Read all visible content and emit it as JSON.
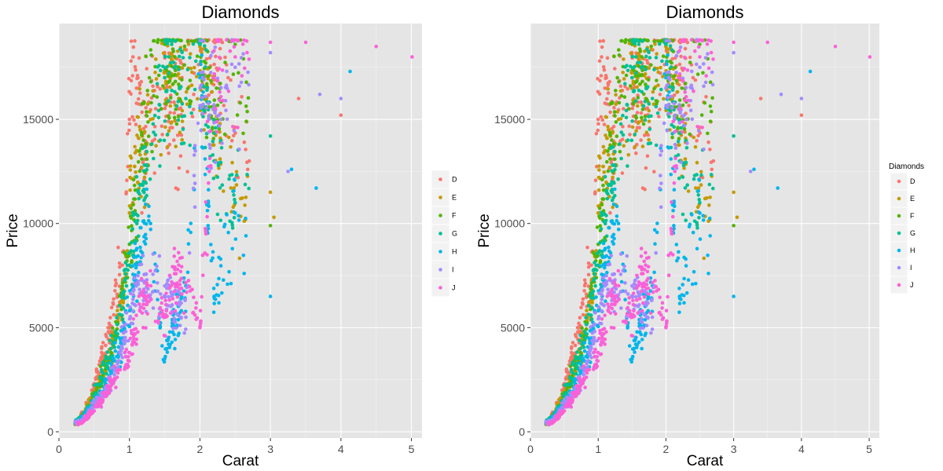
{
  "chart_data": [
    {
      "type": "scatter",
      "title": "Diamonds",
      "xlabel": "Carat",
      "ylabel": "Price",
      "xlim": [
        0,
        5.15
      ],
      "ylim": [
        -300,
        19600
      ],
      "x_ticks": [
        "0",
        "1",
        "2",
        "3",
        "4",
        "5"
      ],
      "y_ticks": [
        "0",
        "5000",
        "10000",
        "15000"
      ],
      "grid": true,
      "background": "#e5e5e5",
      "legend": {
        "title": "",
        "placement": "right",
        "entries": [
          "D",
          "E",
          "F",
          "G",
          "H",
          "I",
          "J"
        ]
      },
      "series": [
        {
          "name": "D",
          "color": "#F8766D",
          "x": [
            0.23,
            0.3,
            0.4,
            0.5,
            0.6,
            0.7,
            0.9,
            1.0,
            1.05,
            1.1,
            1.2,
            1.5,
            1.7,
            2.0,
            2.4,
            2.7,
            3.4,
            4.0
          ],
          "y": [
            400,
            700,
            1200,
            2200,
            3500,
            4800,
            8000,
            15000,
            18000,
            16500,
            14000,
            17000,
            15500,
            18500,
            17000,
            13000,
            16000,
            15200
          ]
        },
        {
          "name": "E",
          "color": "#C49A00",
          "x": [
            0.23,
            0.35,
            0.5,
            0.7,
            0.9,
            1.0,
            1.1,
            1.3,
            1.5,
            1.7,
            2.0,
            2.3,
            2.5,
            3.0,
            3.05
          ],
          "y": [
            350,
            800,
            1800,
            3500,
            6000,
            10500,
            13500,
            15000,
            17000,
            16000,
            18500,
            14000,
            10500,
            11500,
            10300
          ]
        },
        {
          "name": "F",
          "color": "#53B400",
          "x": [
            0.25,
            0.4,
            0.6,
            0.8,
            1.0,
            1.2,
            1.4,
            1.5,
            1.7,
            2.0,
            2.2,
            2.5,
            3.0
          ],
          "y": [
            450,
            1000,
            2500,
            4500,
            9000,
            14000,
            18700,
            18600,
            17500,
            18600,
            15000,
            18600,
            9900
          ]
        },
        {
          "name": "G",
          "color": "#00C094",
          "x": [
            0.25,
            0.45,
            0.6,
            0.8,
            1.0,
            1.2,
            1.5,
            1.6,
            1.8,
            2.0,
            2.2,
            2.5,
            3.0
          ],
          "y": [
            450,
            1200,
            2600,
            4500,
            8000,
            12000,
            17000,
            18600,
            16000,
            18600,
            13000,
            11000,
            14200
          ]
        },
        {
          "name": "H",
          "color": "#00B6EB",
          "x": [
            0.25,
            0.5,
            0.7,
            0.9,
            1.1,
            1.3,
            1.5,
            1.8,
            2.0,
            2.2,
            2.5,
            3.0,
            3.3,
            3.65,
            4.13
          ],
          "y": [
            400,
            1300,
            2500,
            4500,
            8000,
            10000,
            3500,
            7000,
            17000,
            6500,
            10500,
            6500,
            12600,
            11700,
            17300
          ]
        },
        {
          "name": "I",
          "color": "#A58AFF",
          "x": [
            0.3,
            0.5,
            0.7,
            0.9,
            1.1,
            1.5,
            1.8,
            2.0,
            2.3,
            2.5,
            3.0,
            3.25,
            3.7,
            4.0
          ],
          "y": [
            450,
            1200,
            2200,
            4000,
            7000,
            7000,
            5500,
            16500,
            15000,
            17500,
            18200,
            12500,
            16200,
            16000
          ]
        },
        {
          "name": "J",
          "color": "#FB61D7",
          "x": [
            0.3,
            0.5,
            0.7,
            1.0,
            1.2,
            1.5,
            1.7,
            2.0,
            2.2,
            2.5,
            3.0,
            3.5,
            4.5,
            5.01
          ],
          "y": [
            400,
            1000,
            2000,
            3800,
            6500,
            5500,
            8000,
            5000,
            17000,
            18000,
            18700,
            18700,
            18500,
            18000
          ]
        }
      ]
    },
    {
      "type": "scatter",
      "title": "Diamonds",
      "xlabel": "Carat",
      "ylabel": "Price",
      "xlim": [
        0,
        5.15
      ],
      "ylim": [
        -300,
        19600
      ],
      "x_ticks": [
        "0",
        "1",
        "2",
        "3",
        "4",
        "5"
      ],
      "y_ticks": [
        "0",
        "5000",
        "10000",
        "15000"
      ],
      "grid": true,
      "background": "#e5e5e5",
      "legend": {
        "title": "Diamonds",
        "placement": "right",
        "entries": [
          "D",
          "E",
          "F",
          "G",
          "H",
          "I",
          "J"
        ]
      },
      "series": [
        {
          "name": "D",
          "color": "#F8766D",
          "x": [
            0.23,
            0.3,
            0.4,
            0.5,
            0.6,
            0.7,
            0.9,
            1.0,
            1.05,
            1.1,
            1.2,
            1.5,
            1.7,
            2.0,
            2.4,
            2.7,
            3.4,
            4.0
          ],
          "y": [
            400,
            700,
            1200,
            2200,
            3500,
            4800,
            8000,
            15000,
            18000,
            16500,
            14000,
            17000,
            15500,
            18500,
            17000,
            13000,
            16000,
            15200
          ]
        },
        {
          "name": "E",
          "color": "#C49A00",
          "x": [
            0.23,
            0.35,
            0.5,
            0.7,
            0.9,
            1.0,
            1.1,
            1.3,
            1.5,
            1.7,
            2.0,
            2.3,
            2.5,
            3.0,
            3.05
          ],
          "y": [
            350,
            800,
            1800,
            3500,
            6000,
            10500,
            13500,
            15000,
            17000,
            16000,
            18500,
            14000,
            10500,
            11500,
            10300
          ]
        },
        {
          "name": "F",
          "color": "#53B400",
          "x": [
            0.25,
            0.4,
            0.6,
            0.8,
            1.0,
            1.2,
            1.4,
            1.5,
            1.7,
            2.0,
            2.2,
            2.5,
            3.0
          ],
          "y": [
            450,
            1000,
            2500,
            4500,
            9000,
            14000,
            18700,
            18600,
            17500,
            18600,
            15000,
            18600,
            9900
          ]
        },
        {
          "name": "G",
          "color": "#00C094",
          "x": [
            0.25,
            0.45,
            0.6,
            0.8,
            1.0,
            1.2,
            1.5,
            1.6,
            1.8,
            2.0,
            2.2,
            2.5,
            3.0
          ],
          "y": [
            450,
            1200,
            2600,
            4500,
            8000,
            12000,
            17000,
            18600,
            16000,
            18600,
            13000,
            11000,
            14200
          ]
        },
        {
          "name": "H",
          "color": "#00B6EB",
          "x": [
            0.25,
            0.5,
            0.7,
            0.9,
            1.1,
            1.3,
            1.5,
            1.8,
            2.0,
            2.2,
            2.5,
            3.0,
            3.3,
            3.65,
            4.13
          ],
          "y": [
            400,
            1300,
            2500,
            4500,
            8000,
            10000,
            3500,
            7000,
            17000,
            6500,
            10500,
            6500,
            12600,
            11700,
            17300
          ]
        },
        {
          "name": "I",
          "color": "#A58AFF",
          "x": [
            0.3,
            0.5,
            0.7,
            0.9,
            1.1,
            1.5,
            1.8,
            2.0,
            2.3,
            2.5,
            3.0,
            3.25,
            3.7,
            4.0
          ],
          "y": [
            450,
            1200,
            2200,
            4000,
            7000,
            7000,
            5500,
            16500,
            15000,
            17500,
            18200,
            12500,
            16200,
            16000
          ]
        },
        {
          "name": "J",
          "color": "#FB61D7",
          "x": [
            0.3,
            0.5,
            0.7,
            1.0,
            1.2,
            1.5,
            1.7,
            2.0,
            2.2,
            2.5,
            3.0,
            3.5,
            4.5,
            5.01
          ],
          "y": [
            400,
            1000,
            2000,
            3800,
            6500,
            5500,
            8000,
            5000,
            17000,
            18000,
            18700,
            18700,
            18500,
            18000
          ]
        }
      ]
    }
  ]
}
